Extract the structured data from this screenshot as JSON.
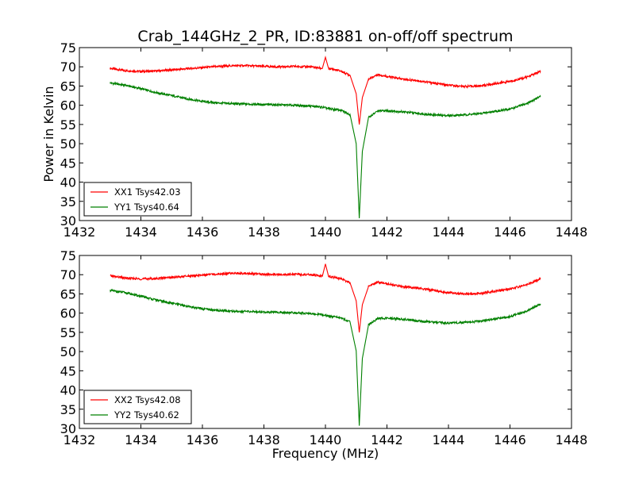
{
  "figure": {
    "title": "Crab_144GHz_2_PR, ID:83881 on-off/off spectrum"
  },
  "chart_data": [
    {
      "type": "line",
      "title": "Crab_144GHz_2_PR, ID:83881 on-off/off spectrum",
      "xlabel": "",
      "ylabel": "Power in Kelvin",
      "xlim": [
        1432,
        1448
      ],
      "ylim": [
        30,
        75
      ],
      "xticks": [
        1432,
        1434,
        1436,
        1438,
        1440,
        1442,
        1444,
        1446,
        1448
      ],
      "yticks": [
        30,
        35,
        40,
        45,
        50,
        55,
        60,
        65,
        70,
        75
      ],
      "grid": false,
      "legend_position": "lower-left",
      "x": [
        1433.0,
        1433.5,
        1434.0,
        1434.5,
        1435.0,
        1435.5,
        1436.0,
        1436.5,
        1437.0,
        1437.5,
        1438.0,
        1438.5,
        1439.0,
        1439.5,
        1439.9,
        1440.0,
        1440.1,
        1440.5,
        1440.8,
        1441.0,
        1441.1,
        1441.2,
        1441.4,
        1441.7,
        1442.0,
        1442.5,
        1443.0,
        1443.5,
        1444.0,
        1444.5,
        1445.0,
        1445.5,
        1446.0,
        1446.5,
        1447.0
      ],
      "series": [
        {
          "name": "XX1 Tsys42.03",
          "color": "#ff0000",
          "values": [
            69.6,
            69.0,
            68.8,
            68.9,
            69.2,
            69.5,
            69.8,
            70.1,
            70.3,
            70.3,
            70.1,
            70.0,
            70.1,
            70.0,
            69.6,
            72.5,
            69.6,
            68.9,
            67.8,
            63.0,
            55.0,
            62.0,
            66.8,
            68.0,
            67.5,
            66.8,
            66.4,
            65.8,
            65.2,
            64.9,
            65.0,
            65.6,
            66.2,
            67.2,
            68.8
          ]
        },
        {
          "name": "YY1 Tsys40.64",
          "color": "#008000",
          "values": [
            65.8,
            65.2,
            64.3,
            63.3,
            62.5,
            61.7,
            61.0,
            60.6,
            60.4,
            60.3,
            60.2,
            60.1,
            60.0,
            59.8,
            59.5,
            59.3,
            59.1,
            58.7,
            57.6,
            50.0,
            30.6,
            48.0,
            56.8,
            58.5,
            58.6,
            58.3,
            57.9,
            57.5,
            57.3,
            57.5,
            57.8,
            58.4,
            59.0,
            60.3,
            62.3
          ]
        }
      ]
    },
    {
      "type": "line",
      "title": "",
      "xlabel": "Frequency (MHz)",
      "ylabel": "",
      "xlim": [
        1432,
        1448
      ],
      "ylim": [
        30,
        75
      ],
      "xticks": [
        1432,
        1434,
        1436,
        1438,
        1440,
        1442,
        1444,
        1446,
        1448
      ],
      "yticks": [
        30,
        35,
        40,
        45,
        50,
        55,
        60,
        65,
        70,
        75
      ],
      "grid": false,
      "legend_position": "lower-left",
      "x": [
        1433.0,
        1433.5,
        1434.0,
        1434.5,
        1435.0,
        1435.5,
        1436.0,
        1436.5,
        1437.0,
        1437.5,
        1438.0,
        1438.5,
        1439.0,
        1439.5,
        1439.9,
        1440.0,
        1440.1,
        1440.5,
        1440.8,
        1441.0,
        1441.1,
        1441.2,
        1441.4,
        1441.7,
        1442.0,
        1442.5,
        1443.0,
        1443.5,
        1444.0,
        1444.5,
        1445.0,
        1445.5,
        1446.0,
        1446.5,
        1447.0
      ],
      "series": [
        {
          "name": "XX2 Tsys42.08",
          "color": "#ff0000",
          "values": [
            69.7,
            69.1,
            68.9,
            69.0,
            69.3,
            69.6,
            69.9,
            70.2,
            70.4,
            70.3,
            70.1,
            70.0,
            70.1,
            70.0,
            69.6,
            72.8,
            69.6,
            68.9,
            67.9,
            63.2,
            55.0,
            62.2,
            66.9,
            68.1,
            67.6,
            66.9,
            66.5,
            65.9,
            65.3,
            65.0,
            65.1,
            65.7,
            66.3,
            67.3,
            68.9
          ]
        },
        {
          "name": "YY2 Tsys40.62",
          "color": "#008000",
          "values": [
            65.9,
            65.3,
            64.4,
            63.4,
            62.6,
            61.8,
            61.1,
            60.7,
            60.5,
            60.4,
            60.3,
            60.2,
            60.1,
            59.9,
            59.6,
            59.4,
            59.2,
            58.8,
            57.7,
            50.2,
            30.7,
            48.2,
            56.9,
            58.6,
            58.7,
            58.4,
            58.0,
            57.6,
            57.4,
            57.6,
            57.9,
            58.5,
            59.1,
            60.4,
            62.4
          ]
        }
      ]
    }
  ]
}
